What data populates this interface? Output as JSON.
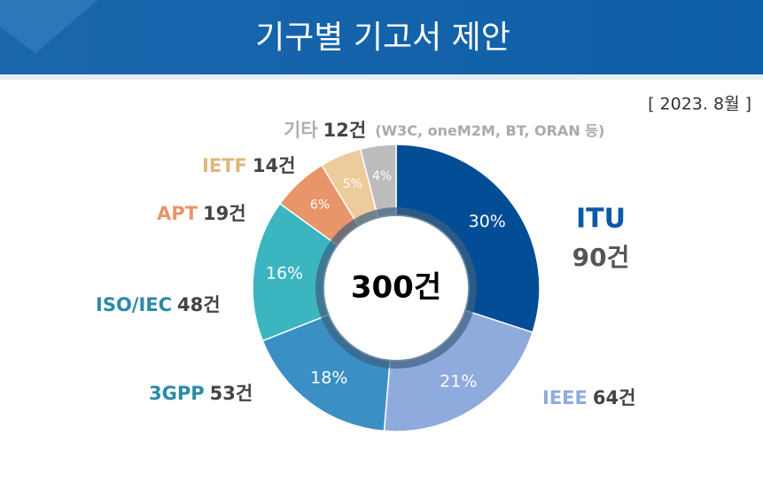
{
  "chart_data": {
    "type": "pie",
    "title": "기구별 기고서 제안",
    "date_note": "[ 2023. 8월 ]",
    "center_label": "300건",
    "other_note": "(W3C, oneM2M, BT, ORAN 등)",
    "categories": [
      "ITU",
      "IEEE",
      "3GPP",
      "ISO/IEC",
      "APT",
      "IETF",
      "기타"
    ],
    "values": [
      90,
      64,
      53,
      48,
      19,
      14,
      12
    ],
    "value_labels": [
      "90건",
      "64건",
      "53건",
      "48건",
      "19건",
      "14건",
      "12건"
    ],
    "percent_labels": [
      "30%",
      "21%",
      "18%",
      "16%",
      "6%",
      "5%",
      "4%"
    ],
    "colors": [
      "#034d96",
      "#8faadc",
      "#3a8fc4",
      "#3bb5c0",
      "#e8956a",
      "#eecb9a",
      "#bcbcbc"
    ]
  }
}
